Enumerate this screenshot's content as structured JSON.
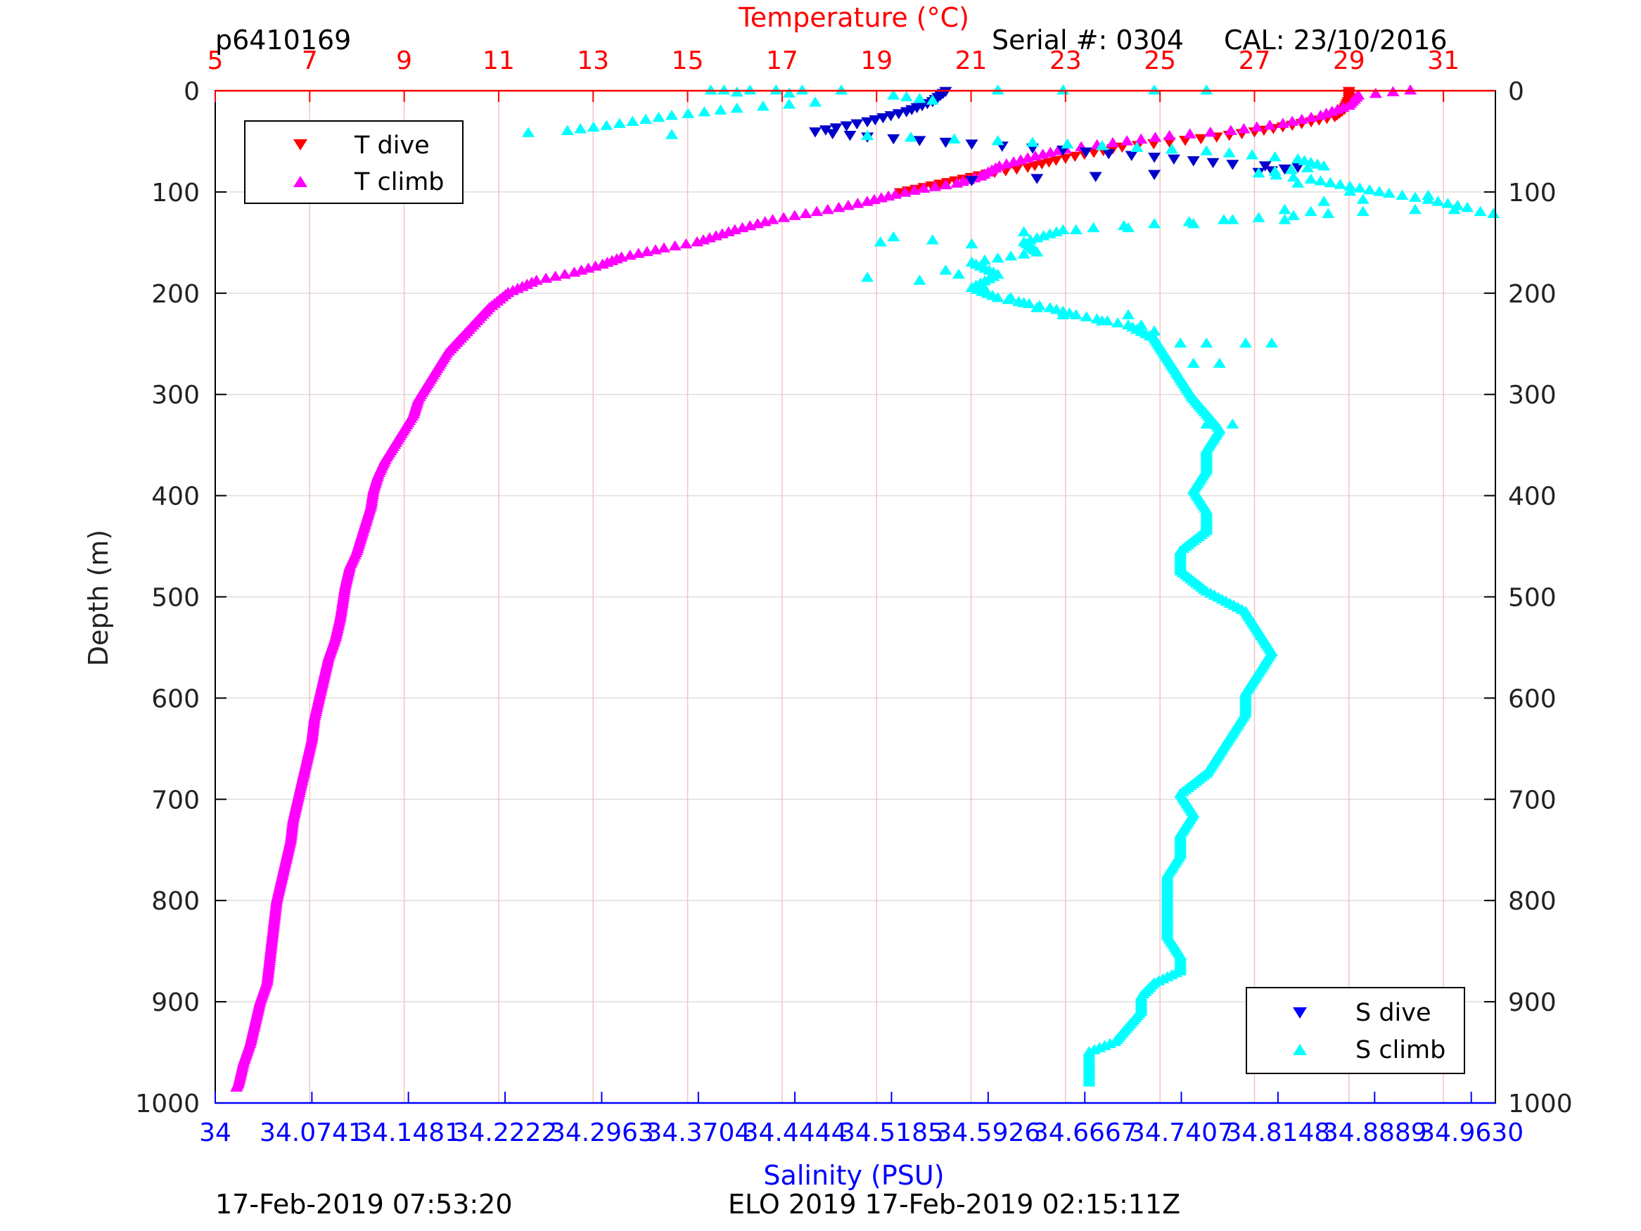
{
  "header": {
    "profile_id": "p6410169",
    "serial": "Serial #: 0304",
    "calibration": "CAL: 23/10/2016"
  },
  "footer": {
    "left": "17-Feb-2019 07:53:20",
    "right": "ELO 2019 17-Feb-2019 02:15:11Z"
  },
  "chart_data": {
    "type": "scatter",
    "colors": {
      "temperature_axis": "#ff0000",
      "salinity_axis": "#0000ff",
      "t_dive": "#ff0000",
      "t_climb": "#ff00ff",
      "s_dive": "#0000cc",
      "s_climb": "#00ffff",
      "grid_vertical": "#f4c4c4",
      "grid_horizontal": "#dedede"
    },
    "y_axis": {
      "label": "Depth (m)",
      "range": [
        0,
        1000
      ],
      "reversed": true,
      "ticks": [
        0,
        100,
        200,
        300,
        400,
        500,
        600,
        700,
        800,
        900,
        1000
      ]
    },
    "x_top": {
      "label": "Temperature (°C)",
      "range": [
        5,
        32.1
      ],
      "ticks": [
        5,
        7,
        9,
        11,
        13,
        15,
        17,
        19,
        21,
        23,
        25,
        27,
        29,
        31
      ]
    },
    "x_bottom": {
      "label": "Salinity (PSU)",
      "range": [
        34,
        34.9815
      ],
      "ticks": [
        34,
        34.0741,
        34.1481,
        34.2222,
        34.2963,
        34.3704,
        34.4444,
        34.5185,
        34.5926,
        34.6667,
        34.7407,
        34.8148,
        34.8889,
        34.963
      ],
      "tick_labels": [
        "34",
        "34.0741",
        "34.1481",
        "34.2222",
        "34.2963",
        "34.3704",
        "34.4444",
        "34.5185",
        "34.5926",
        "34.6667",
        "34.7407",
        "34.8148",
        "34.8889",
        "34.9630"
      ]
    },
    "grid": "vertical-temperature, horizontal-depth",
    "legends": [
      {
        "placement": "top-left",
        "entries": [
          {
            "label": "T dive",
            "marker": "triangle-down",
            "series": "t_dive"
          },
          {
            "label": "T climb",
            "marker": "triangle-up",
            "series": "t_climb"
          }
        ]
      },
      {
        "placement": "bottom-right",
        "entries": [
          {
            "label": "S dive",
            "marker": "triangle-down",
            "series": "s_dive"
          },
          {
            "label": "S climb",
            "marker": "triangle-up",
            "series": "s_climb"
          }
        ]
      }
    ],
    "series": [
      {
        "key": "t_dive",
        "name": "T dive",
        "axis": "temperature",
        "marker": "triangle-down",
        "points": [
          [
            29.0,
            0
          ],
          [
            29.0,
            8
          ],
          [
            28.9,
            18
          ],
          [
            28.7,
            25
          ],
          [
            28.2,
            30
          ],
          [
            27.6,
            35
          ],
          [
            27.0,
            40
          ],
          [
            26.2,
            45
          ],
          [
            25.2,
            50
          ],
          [
            24.2,
            55
          ],
          [
            23.4,
            62
          ],
          [
            22.8,
            68
          ],
          [
            22.2,
            75
          ],
          [
            21.5,
            80
          ],
          [
            21.0,
            85
          ],
          [
            20.5,
            90
          ],
          [
            20.0,
            95
          ],
          [
            19.5,
            100
          ]
        ]
      },
      {
        "key": "t_climb",
        "name": "T climb",
        "axis": "temperature",
        "marker": "triangle-up",
        "points": [
          [
            30.3,
            0
          ],
          [
            29.2,
            5
          ],
          [
            29.0,
            15
          ],
          [
            28.4,
            25
          ],
          [
            27.6,
            33
          ],
          [
            26.5,
            40
          ],
          [
            25.2,
            45
          ],
          [
            24.0,
            52
          ],
          [
            23.0,
            58
          ],
          [
            22.2,
            67
          ],
          [
            21.6,
            75
          ],
          [
            21.2,
            85
          ],
          [
            20.7,
            92
          ],
          [
            20.0,
            97
          ],
          [
            19.4,
            103
          ],
          [
            18.8,
            110
          ],
          [
            18.2,
            116
          ],
          [
            17.5,
            122
          ],
          [
            16.8,
            128
          ],
          [
            16.0,
            138
          ],
          [
            15.2,
            150
          ],
          [
            14.5,
            156
          ],
          [
            13.6,
            165
          ],
          [
            13.2,
            172
          ],
          [
            12.6,
            180
          ],
          [
            11.8,
            188
          ],
          [
            11.2,
            200
          ],
          [
            10.8,
            215
          ],
          [
            10.5,
            230
          ],
          [
            10.2,
            245
          ],
          [
            9.9,
            260
          ],
          [
            9.7,
            275
          ],
          [
            9.5,
            290
          ],
          [
            9.3,
            305
          ],
          [
            9.2,
            320
          ],
          [
            9.0,
            335
          ],
          [
            8.8,
            350
          ],
          [
            8.6,
            365
          ],
          [
            8.45,
            380
          ],
          [
            8.35,
            395
          ],
          [
            8.3,
            410
          ],
          [
            8.2,
            425
          ],
          [
            8.1,
            440
          ],
          [
            8.0,
            455
          ],
          [
            7.85,
            470
          ],
          [
            7.75,
            490
          ],
          [
            7.7,
            505
          ],
          [
            7.65,
            520
          ],
          [
            7.55,
            540
          ],
          [
            7.4,
            560
          ],
          [
            7.3,
            580
          ],
          [
            7.2,
            600
          ],
          [
            7.1,
            620
          ],
          [
            7.05,
            640
          ],
          [
            6.95,
            660
          ],
          [
            6.85,
            680
          ],
          [
            6.75,
            700
          ],
          [
            6.65,
            720
          ],
          [
            6.6,
            740
          ],
          [
            6.5,
            760
          ],
          [
            6.4,
            780
          ],
          [
            6.3,
            800
          ],
          [
            6.25,
            820
          ],
          [
            6.2,
            840
          ],
          [
            6.15,
            860
          ],
          [
            6.1,
            880
          ],
          [
            5.95,
            900
          ],
          [
            5.85,
            920
          ],
          [
            5.75,
            940
          ],
          [
            5.6,
            960
          ],
          [
            5.5,
            980
          ],
          [
            5.45,
            985
          ]
        ]
      },
      {
        "key": "s_dive",
        "name": "S dive",
        "axis": "salinity",
        "marker": "triangle-down",
        "points": [
          [
            34.56,
            0
          ],
          [
            34.55,
            10
          ],
          [
            34.53,
            20
          ],
          [
            34.5,
            30
          ],
          [
            34.46,
            40
          ],
          [
            34.5,
            45
          ],
          [
            34.58,
            52
          ],
          [
            34.65,
            58
          ],
          [
            34.72,
            65
          ],
          [
            34.78,
            72
          ],
          [
            34.83,
            75
          ],
          [
            34.8,
            80
          ],
          [
            34.72,
            82
          ],
          [
            34.63,
            86
          ],
          [
            34.58,
            88
          ]
        ]
      },
      {
        "key": "s_climb",
        "name": "S climb",
        "axis": "salinity",
        "marker": "triangle-up",
        "points": [
          [
            34.4,
            2
          ],
          [
            34.44,
            3
          ],
          [
            34.52,
            5
          ],
          [
            34.55,
            10
          ],
          [
            34.46,
            12
          ],
          [
            34.4,
            18
          ],
          [
            34.35,
            25
          ],
          [
            34.3,
            35
          ],
          [
            34.27,
            40
          ],
          [
            34.24,
            42
          ],
          [
            34.35,
            44
          ],
          [
            34.5,
            45
          ],
          [
            34.6,
            50
          ],
          [
            34.68,
            55
          ],
          [
            34.76,
            60
          ],
          [
            34.83,
            68
          ],
          [
            34.85,
            75
          ],
          [
            34.8,
            82
          ],
          [
            34.84,
            88
          ],
          [
            34.87,
            95
          ],
          [
            34.9,
            102
          ],
          [
            34.93,
            108
          ],
          [
            34.96,
            116
          ],
          [
            34.88,
            120
          ],
          [
            34.8,
            126
          ],
          [
            34.72,
            132
          ],
          [
            34.65,
            138
          ],
          [
            34.62,
            150
          ],
          [
            34.63,
            160
          ],
          [
            34.58,
            170
          ],
          [
            34.6,
            182
          ],
          [
            34.58,
            195
          ],
          [
            34.6,
            205
          ],
          [
            34.64,
            215
          ],
          [
            34.66,
            222
          ],
          [
            34.7,
            232
          ],
          [
            34.72,
            245
          ],
          [
            34.73,
            265
          ],
          [
            34.74,
            285
          ],
          [
            34.75,
            305
          ],
          [
            34.76,
            320
          ],
          [
            34.77,
            335
          ],
          [
            34.76,
            355
          ],
          [
            34.76,
            375
          ],
          [
            34.75,
            395
          ],
          [
            34.76,
            415
          ],
          [
            34.76,
            435
          ],
          [
            34.74,
            455
          ],
          [
            34.74,
            475
          ],
          [
            34.76,
            495
          ],
          [
            34.79,
            515
          ],
          [
            34.8,
            535
          ],
          [
            34.81,
            555
          ],
          [
            34.8,
            575
          ],
          [
            34.79,
            595
          ],
          [
            34.79,
            615
          ],
          [
            34.78,
            635
          ],
          [
            34.77,
            655
          ],
          [
            34.76,
            675
          ],
          [
            34.74,
            695
          ],
          [
            34.75,
            715
          ],
          [
            34.74,
            735
          ],
          [
            34.74,
            755
          ],
          [
            34.73,
            775
          ],
          [
            34.73,
            795
          ],
          [
            34.73,
            815
          ],
          [
            34.73,
            835
          ],
          [
            34.74,
            855
          ],
          [
            34.74,
            870
          ],
          [
            34.72,
            882
          ],
          [
            34.71,
            895
          ],
          [
            34.71,
            910
          ],
          [
            34.7,
            925
          ],
          [
            34.69,
            940
          ],
          [
            34.67,
            950
          ],
          [
            34.67,
            965
          ],
          [
            34.67,
            980
          ]
        ]
      },
      {
        "key": "s_climb_scatter",
        "name": "",
        "axis": "salinity",
        "marker": "triangle-up",
        "points": [
          [
            34.38,
            0
          ],
          [
            34.39,
            0
          ],
          [
            34.41,
            0
          ],
          [
            34.43,
            0
          ],
          [
            34.45,
            0
          ],
          [
            34.48,
            0
          ],
          [
            34.6,
            0
          ],
          [
            34.65,
            0
          ],
          [
            34.72,
            0
          ],
          [
            34.76,
            0
          ],
          [
            34.83,
            92
          ],
          [
            34.87,
            100
          ],
          [
            34.85,
            110
          ],
          [
            34.82,
            118
          ],
          [
            34.84,
            120
          ],
          [
            34.88,
            108
          ],
          [
            34.93,
            104
          ],
          [
            34.95,
            118
          ],
          [
            34.98,
            122
          ],
          [
            34.97,
            120
          ],
          [
            34.52,
            145
          ],
          [
            34.51,
            150
          ],
          [
            34.55,
            148
          ],
          [
            34.58,
            152
          ],
          [
            34.62,
            140
          ],
          [
            34.66,
            138
          ],
          [
            34.7,
            136
          ],
          [
            34.75,
            132
          ],
          [
            34.78,
            128
          ],
          [
            34.82,
            128
          ],
          [
            34.56,
            178
          ],
          [
            34.5,
            185
          ],
          [
            34.54,
            188
          ],
          [
            34.57,
            182
          ],
          [
            34.59,
            196
          ],
          [
            34.61,
            205
          ],
          [
            34.62,
            210
          ],
          [
            34.63,
            215
          ],
          [
            34.65,
            222
          ],
          [
            34.68,
            228
          ],
          [
            34.7,
            222
          ],
          [
            34.71,
            232
          ],
          [
            34.72,
            238
          ],
          [
            34.74,
            250
          ],
          [
            34.76,
            250
          ],
          [
            34.79,
            250
          ],
          [
            34.81,
            250
          ],
          [
            34.75,
            270
          ],
          [
            34.77,
            270
          ],
          [
            34.78,
            330
          ],
          [
            34.76,
            330
          ]
        ]
      }
    ]
  }
}
